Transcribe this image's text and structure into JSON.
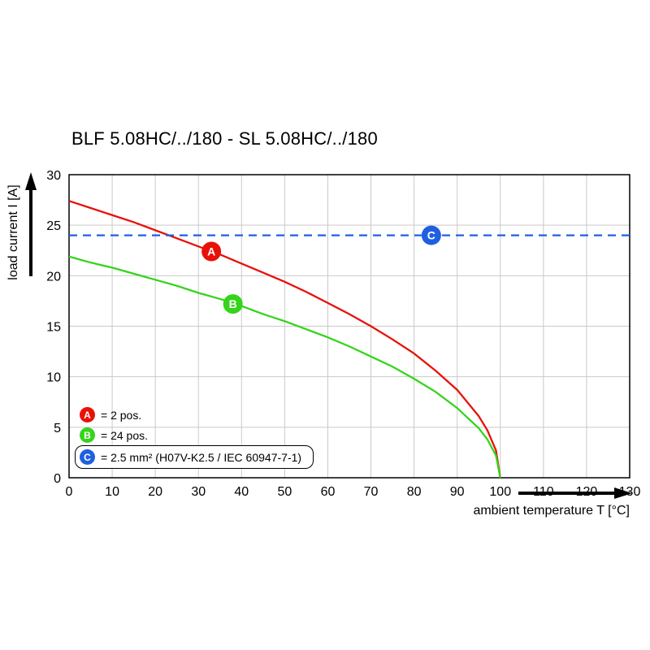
{
  "chart_data": {
    "type": "line",
    "title": "BLF 5.08HC/../180 - SL 5.08HC/../180",
    "xlabel": "ambient temperature T [°C]",
    "ylabel": "load current I [A]",
    "xlim": [
      0,
      130
    ],
    "ylim": [
      0,
      30
    ],
    "xticks": [
      0,
      10,
      20,
      30,
      40,
      50,
      60,
      70,
      80,
      90,
      100,
      110,
      120,
      130
    ],
    "yticks": [
      0,
      5,
      10,
      15,
      20,
      25,
      30
    ],
    "grid": true,
    "legend_position": "lower-left-inside",
    "colors": {
      "grid": "#c9c9c9",
      "axis": "#000000",
      "red": "#e81109",
      "green": "#35d41c",
      "blue": "#1f5fe0",
      "background": "#ffffff"
    },
    "series": [
      {
        "name": "A",
        "label": "= 2 pos.",
        "color": "#e81109",
        "dash": false,
        "x": [
          0,
          5,
          10,
          15,
          20,
          25,
          30,
          35,
          40,
          45,
          50,
          55,
          60,
          65,
          70,
          75,
          80,
          85,
          90,
          95,
          97,
          99,
          100
        ],
        "y": [
          27.4,
          26.7,
          26.0,
          25.3,
          24.5,
          23.7,
          22.9,
          22.1,
          21.2,
          20.3,
          19.4,
          18.4,
          17.3,
          16.2,
          15.0,
          13.7,
          12.3,
          10.6,
          8.7,
          6.1,
          4.7,
          2.7,
          0
        ]
      },
      {
        "name": "B",
        "label": "= 24 pos.",
        "color": "#35d41c",
        "dash": false,
        "x": [
          0,
          5,
          10,
          15,
          20,
          25,
          30,
          35,
          40,
          45,
          50,
          55,
          60,
          65,
          70,
          75,
          80,
          85,
          90,
          95,
          97,
          99,
          100
        ],
        "y": [
          21.9,
          21.3,
          20.8,
          20.2,
          19.6,
          19.0,
          18.3,
          17.7,
          17.0,
          16.2,
          15.5,
          14.7,
          13.9,
          13.0,
          12.0,
          11.0,
          9.8,
          8.5,
          6.9,
          4.9,
          3.8,
          2.2,
          0
        ]
      },
      {
        "name": "C",
        "label": "= 2.5 mm² (H07V-K2.5 / IEC 60947-7-1)",
        "color": "#1f5fe0",
        "dash": true,
        "x": [
          0,
          130
        ],
        "y": [
          24,
          24
        ]
      }
    ],
    "markers": [
      {
        "label": "A",
        "x": 33,
        "y": 22.4,
        "color": "#e81109"
      },
      {
        "label": "B",
        "x": 38,
        "y": 17.2,
        "color": "#35d41c"
      },
      {
        "label": "C",
        "x": 84,
        "y": 24,
        "color": "#1f5fe0"
      }
    ]
  }
}
